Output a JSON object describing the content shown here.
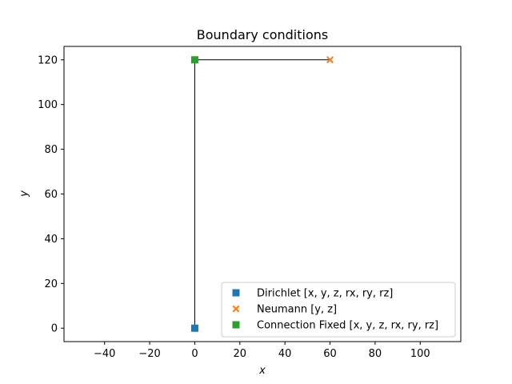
{
  "chart_data": {
    "type": "scatter",
    "title": "Boundary conditions",
    "xlabel": "x",
    "ylabel": "y",
    "xlim": [
      -58,
      118
    ],
    "ylim": [
      -6,
      126
    ],
    "xticks": [
      -40,
      -20,
      0,
      20,
      40,
      60,
      80,
      100
    ],
    "yticks": [
      0,
      20,
      40,
      60,
      80,
      100,
      120
    ],
    "grid": false,
    "legend_position": "lower-right",
    "structure_lines": [
      {
        "x": [
          0,
          0
        ],
        "y": [
          0,
          120
        ],
        "color": "#000000"
      },
      {
        "x": [
          0,
          60
        ],
        "y": [
          120,
          120
        ],
        "color": "#000000"
      }
    ],
    "series": [
      {
        "name": "Dirichlet  [x, y, z, rx, ry, rz]",
        "marker": "square",
        "color": "#1f77b4",
        "points": [
          [
            0,
            0
          ]
        ]
      },
      {
        "name": "Neumann  [y, z]",
        "marker": "x-cross",
        "color": "#ff7f0e",
        "points": [
          [
            60,
            120
          ]
        ]
      },
      {
        "name": "Connection Fixed [x, y, z, rx, ry, rz]",
        "marker": "square",
        "color": "#2ca02c",
        "points": [
          [
            0,
            120
          ]
        ]
      }
    ]
  }
}
